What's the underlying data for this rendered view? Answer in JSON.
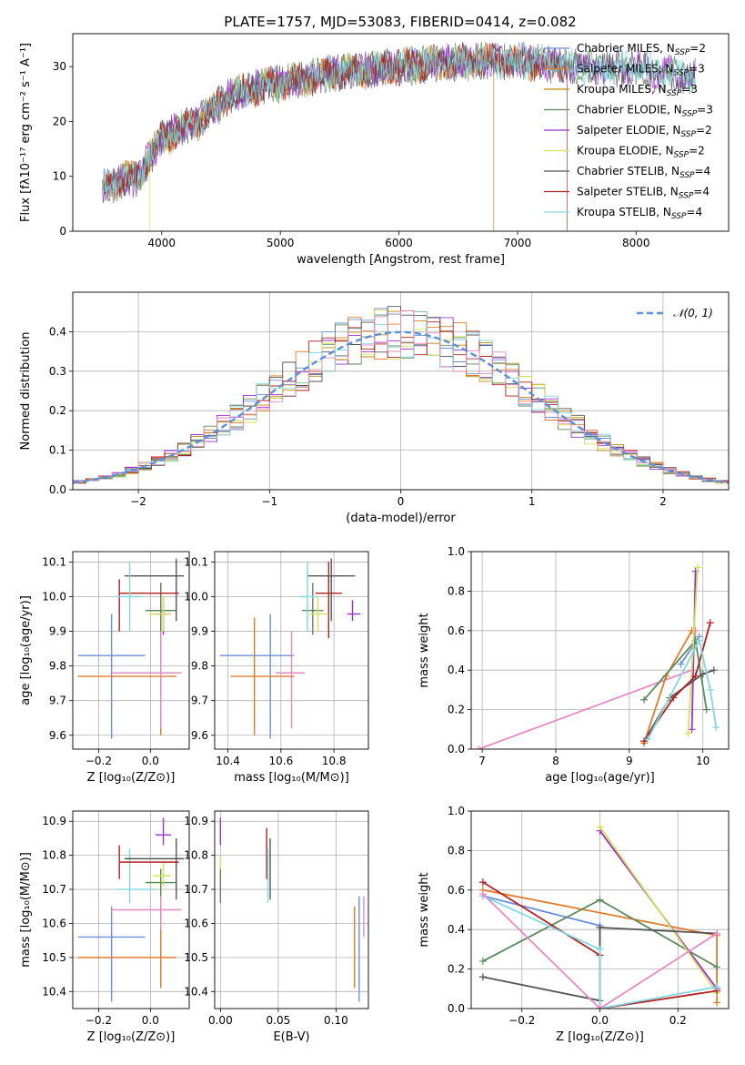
{
  "figure": {
    "title": "PLATE=1757, MJD=53083, FIBERID=0414, z=0.082"
  },
  "legend_models": [
    {
      "label": "Chabrier MILES, N",
      "sub": "SSP",
      "suffix": "=2",
      "color": "#6b8fd6"
    },
    {
      "label": "Salpeter MILES, N",
      "sub": "SSP",
      "suffix": "=3",
      "color": "#e07b2a"
    },
    {
      "label": "Kroupa MILES, N",
      "sub": "SSP",
      "suffix": "=3",
      "color": "#b8860b"
    },
    {
      "label": "Chabrier ELODIE, N",
      "sub": "SSP",
      "suffix": "=3",
      "color": "#5a8a5a"
    },
    {
      "label": "Salpeter ELODIE, N",
      "sub": "SSP",
      "suffix": "=2",
      "color": "#9932cc"
    },
    {
      "label": "Kroupa ELODIE, N",
      "sub": "SSP",
      "suffix": "=2",
      "color": "#d4e157"
    },
    {
      "label": "Chabrier STELIB, N",
      "sub": "SSP",
      "suffix": "=4",
      "color": "#555555"
    },
    {
      "label": "Salpeter STELIB, N",
      "sub": "SSP",
      "suffix": "=4",
      "color": "#b22222"
    },
    {
      "label": "Kroupa STELIB, N",
      "sub": "SSP",
      "suffix": "=4",
      "color": "#80d8e0"
    }
  ],
  "chart_data": [
    {
      "id": "spectrum",
      "type": "line",
      "xlabel": "wavelength [Angstrom, rest frame]",
      "ylabel": "Flux [fλ10⁻¹⁷ erg cm⁻² s⁻¹ A⁻¹]",
      "xlim": [
        3250,
        8780
      ],
      "ylim": [
        0,
        36
      ],
      "xticks": [
        4000,
        5000,
        6000,
        7000,
        8000
      ],
      "yticks": [
        0,
        10,
        20,
        30
      ],
      "continuum": [
        [
          3500,
          8
        ],
        [
          3800,
          10
        ],
        [
          4000,
          17
        ],
        [
          4300,
          20
        ],
        [
          4600,
          25
        ],
        [
          5000,
          27
        ],
        [
          5500,
          29
        ],
        [
          6000,
          30
        ],
        [
          6500,
          31
        ],
        [
          7000,
          31
        ],
        [
          7500,
          30
        ],
        [
          8000,
          29.5
        ],
        [
          8500,
          28
        ]
      ]
    },
    {
      "id": "residuals",
      "type": "line",
      "xlabel": "(data-model)/error",
      "ylabel": "Normed distribution",
      "xlim": [
        -2.5,
        2.5
      ],
      "ylim": [
        0,
        0.5
      ],
      "xticks": [
        -2,
        -1,
        0,
        1,
        2
      ],
      "yticks": [
        0.0,
        0.1,
        0.2,
        0.3,
        0.4
      ],
      "grid": true,
      "legend": "𝒩(0, 1)",
      "legend_position": "top-right",
      "gaussian": {
        "mean": 0,
        "sigma": 1
      }
    },
    {
      "id": "age-vs-Z",
      "type": "scatter",
      "xlabel": "Z [log₁₀(Z/Z⊙)]",
      "ylabel": "age  [log₁₀(age/yr)]",
      "xlim": [
        -0.3,
        0.15
      ],
      "ylim": [
        9.56,
        10.13
      ],
      "xticks": [
        -0.2,
        0.0
      ],
      "yticks": [
        9.6,
        9.7,
        9.8,
        9.9,
        10.0,
        10.1
      ],
      "grid": true,
      "points": [
        {
          "c": "#6b8fd6",
          "x": -0.15,
          "y": 9.83,
          "xe": [
            -0.28,
            -0.02
          ],
          "ye": [
            9.59,
            9.95
          ]
        },
        {
          "c": "#e07b2a",
          "x": 0.04,
          "y": 9.77,
          "xe": [
            -0.28,
            0.1
          ],
          "ye": [
            9.6,
            9.94
          ]
        },
        {
          "c": "#b8860b",
          "x": 0.04,
          "y": 9.96,
          "xe": [
            0.0,
            0.08
          ],
          "ye": [
            9.88,
            10.04
          ]
        },
        {
          "c": "#5a8a5a",
          "x": 0.04,
          "y": 9.96,
          "xe": [
            -0.02,
            0.1
          ],
          "ye": [
            9.89,
            10.04
          ]
        },
        {
          "c": "#9932cc",
          "x": 0.05,
          "y": 9.95,
          "xe": [
            0.02,
            0.08
          ],
          "ye": [
            9.89,
            10.0
          ]
        },
        {
          "c": "#d4e157",
          "x": 0.05,
          "y": 9.95,
          "xe": [
            0.0,
            0.08
          ],
          "ye": [
            9.9,
            10.0
          ]
        },
        {
          "c": "#555555",
          "x": 0.1,
          "y": 10.06,
          "xe": [
            -0.1,
            0.13
          ],
          "ye": [
            9.93,
            10.11
          ]
        },
        {
          "c": "#b22222",
          "x": -0.12,
          "y": 10.01,
          "xe": [
            -0.12,
            0.11
          ],
          "ye": [
            9.9,
            10.05
          ]
        },
        {
          "c": "#80d8e0",
          "x": -0.08,
          "y": 10.0,
          "xe": [
            -0.13,
            -0.03
          ],
          "ye": [
            9.9,
            10.1
          ]
        },
        {
          "c": "#e78ac3",
          "x": 0.04,
          "y": 9.78,
          "xe": [
            -0.15,
            0.12
          ],
          "ye": [
            9.62,
            9.9
          ]
        }
      ]
    },
    {
      "id": "age-vs-mass",
      "type": "scatter",
      "xlabel": "mass [log₁₀(M/M⊙)]",
      "ylabel": "",
      "xlim": [
        10.35,
        10.93
      ],
      "ylim": [
        9.56,
        10.13
      ],
      "xticks": [
        10.4,
        10.6,
        10.8
      ],
      "yticks": [
        9.6,
        9.7,
        9.8,
        9.9,
        10.0,
        10.1
      ],
      "grid": true,
      "points": [
        {
          "c": "#6b8fd6",
          "x": 10.56,
          "y": 9.83,
          "xe": [
            10.37,
            10.65
          ],
          "ye": [
            9.59,
            9.95
          ]
        },
        {
          "c": "#e78ac3",
          "x": 10.64,
          "y": 9.78,
          "xe": [
            10.58,
            10.69
          ],
          "ye": [
            9.62,
            9.9
          ]
        },
        {
          "c": "#e07b2a",
          "x": 10.5,
          "y": 9.77,
          "xe": [
            10.41,
            10.65
          ],
          "ye": [
            9.6,
            9.94
          ]
        },
        {
          "c": "#9932cc",
          "x": 10.87,
          "y": 9.95,
          "xe": [
            10.85,
            10.9
          ],
          "ye": [
            9.93,
            9.99
          ]
        },
        {
          "c": "#b22222",
          "x": 10.78,
          "y": 10.01,
          "xe": [
            10.73,
            10.83
          ],
          "ye": [
            9.88,
            10.1
          ]
        },
        {
          "c": "#555555",
          "x": 10.79,
          "y": 10.06,
          "xe": [
            10.7,
            10.88
          ],
          "ye": [
            9.93,
            10.11
          ]
        },
        {
          "c": "#5a8a5a",
          "x": 10.72,
          "y": 9.96,
          "xe": [
            10.68,
            10.76
          ],
          "ye": [
            9.89,
            10.04
          ]
        },
        {
          "c": "#d4e157",
          "x": 10.74,
          "y": 9.95,
          "xe": [
            10.71,
            10.78
          ],
          "ye": [
            9.9,
            10.0
          ]
        },
        {
          "c": "#80d8e0",
          "x": 10.7,
          "y": 10.0,
          "xe": [
            10.67,
            10.74
          ],
          "ye": [
            9.9,
            10.1
          ]
        }
      ]
    },
    {
      "id": "weight-vs-age",
      "type": "line",
      "xlabel": "age  [log₁₀(age/yr)]",
      "ylabel": "mass weight",
      "xlim": [
        6.85,
        10.35
      ],
      "ylim": [
        0,
        1
      ],
      "xticks": [
        7,
        8,
        9,
        10
      ],
      "yticks": [
        0.0,
        0.2,
        0.4,
        0.6,
        0.8,
        1.0
      ],
      "grid": true,
      "series": [
        {
          "c": "#e78ac3",
          "x": [
            6.95,
            9.85,
            9.9
          ],
          "y": [
            0.0,
            0.4,
            0.6
          ]
        },
        {
          "c": "#e07b2a",
          "x": [
            9.2,
            9.5,
            9.85
          ],
          "y": [
            0.03,
            0.37,
            0.6
          ]
        },
        {
          "c": "#6b8fd6",
          "x": [
            9.7,
            9.95
          ],
          "y": [
            0.43,
            0.57
          ]
        },
        {
          "c": "#5a8a5a",
          "x": [
            9.2,
            9.9,
            10.05
          ],
          "y": [
            0.25,
            0.55,
            0.2
          ]
        },
        {
          "c": "#9932cc",
          "x": [
            9.85,
            9.9
          ],
          "y": [
            0.1,
            0.9
          ]
        },
        {
          "c": "#d4e157",
          "x": [
            9.8,
            9.93
          ],
          "y": [
            0.08,
            0.92
          ]
        },
        {
          "c": "#555555",
          "x": [
            9.2,
            9.55,
            10.0,
            10.15
          ],
          "y": [
            0.04,
            0.26,
            0.38,
            0.4
          ]
        },
        {
          "c": "#b22222",
          "x": [
            9.2,
            9.6,
            9.9,
            10.1
          ],
          "y": [
            0.04,
            0.26,
            0.37,
            0.64
          ]
        },
        {
          "c": "#80d8e0",
          "x": [
            9.25,
            9.95,
            10.1,
            10.18
          ],
          "y": [
            0.05,
            0.55,
            0.3,
            0.11
          ]
        }
      ]
    },
    {
      "id": "mass-vs-Z",
      "type": "scatter",
      "xlabel": "Z [log₁₀(Z/Z⊙)]",
      "ylabel": "mass [log₁₀(M/M⊙)]",
      "xlim": [
        -0.3,
        0.15
      ],
      "ylim": [
        10.35,
        10.93
      ],
      "xticks": [
        -0.2,
        0.0
      ],
      "yticks": [
        10.4,
        10.5,
        10.6,
        10.7,
        10.8,
        10.9
      ],
      "grid": true,
      "points": [
        {
          "c": "#6b8fd6",
          "x": -0.15,
          "y": 10.56,
          "xe": [
            -0.28,
            -0.02
          ],
          "ye": [
            10.37,
            10.65
          ]
        },
        {
          "c": "#e07b2a",
          "x": 0.04,
          "y": 10.5,
          "xe": [
            -0.28,
            0.1
          ],
          "ye": [
            10.41,
            10.65
          ]
        },
        {
          "c": "#e78ac3",
          "x": 0.04,
          "y": 10.64,
          "xe": [
            -0.15,
            0.12
          ],
          "ye": [
            10.58,
            10.69
          ]
        },
        {
          "c": "#80d8e0",
          "x": -0.08,
          "y": 10.7,
          "xe": [
            -0.13,
            0.02
          ],
          "ye": [
            10.66,
            10.82
          ]
        },
        {
          "c": "#5a8a5a",
          "x": 0.04,
          "y": 10.72,
          "xe": [
            -0.02,
            0.1
          ],
          "ye": [
            10.68,
            10.76
          ]
        },
        {
          "c": "#d4e157",
          "x": 0.05,
          "y": 10.74,
          "xe": [
            0.01,
            0.08
          ],
          "ye": [
            10.71,
            10.78
          ]
        },
        {
          "c": "#555555",
          "x": 0.1,
          "y": 10.79,
          "xe": [
            -0.1,
            0.13
          ],
          "ye": [
            10.67,
            10.85
          ]
        },
        {
          "c": "#b22222",
          "x": -0.12,
          "y": 10.78,
          "xe": [
            -0.12,
            0.11
          ],
          "ye": [
            10.73,
            10.83
          ]
        },
        {
          "c": "#9932cc",
          "x": 0.05,
          "y": 10.86,
          "xe": [
            0.02,
            0.08
          ],
          "ye": [
            10.83,
            10.91
          ]
        }
      ]
    },
    {
      "id": "mass-vs-ebv",
      "type": "scatter",
      "xlabel": "E(B-V)",
      "ylabel": "",
      "xlim": [
        -0.005,
        0.128
      ],
      "ylim": [
        10.35,
        10.93
      ],
      "xticks": [
        0.0,
        0.05,
        0.1
      ],
      "yticks": [
        10.4,
        10.5,
        10.6,
        10.7,
        10.8,
        10.9
      ],
      "grid": true,
      "points": [
        {
          "c": "#9932cc",
          "x": 0.0,
          "y": 10.86,
          "xe": [
            0.0,
            0.0
          ],
          "ye": [
            10.83,
            10.91
          ]
        },
        {
          "c": "#d4e157",
          "x": 0.0,
          "y": 10.74,
          "xe": [
            0.0,
            0.0
          ],
          "ye": [
            10.71,
            10.8
          ]
        },
        {
          "c": "#5a8a5a",
          "x": 0.0,
          "y": 10.72,
          "xe": [
            0.0,
            0.0
          ],
          "ye": [
            10.66,
            10.76
          ]
        },
        {
          "c": "#b22222",
          "x": 0.04,
          "y": 10.78,
          "xe": [
            0.04,
            0.04
          ],
          "ye": [
            10.73,
            10.88
          ]
        },
        {
          "c": "#555555",
          "x": 0.043,
          "y": 10.79,
          "xe": [
            0.043,
            0.043
          ],
          "ye": [
            10.67,
            10.85
          ]
        },
        {
          "c": "#80d8e0",
          "x": 0.041,
          "y": 10.7,
          "xe": [
            0.041,
            0.041
          ],
          "ye": [
            10.66,
            10.82
          ]
        },
        {
          "c": "#e07b2a",
          "x": 0.116,
          "y": 10.5,
          "xe": [
            0.116,
            0.116
          ],
          "ye": [
            10.41,
            10.65
          ]
        },
        {
          "c": "#6b8fd6",
          "x": 0.12,
          "y": 10.56,
          "xe": [
            0.12,
            0.12
          ],
          "ye": [
            10.37,
            10.68
          ]
        },
        {
          "c": "#e78ac3",
          "x": 0.124,
          "y": 10.64,
          "xe": [
            0.124,
            0.124
          ],
          "ye": [
            10.56,
            10.68
          ]
        }
      ]
    },
    {
      "id": "weight-vs-Z",
      "type": "line",
      "xlabel": "Z [log₁₀(Z/Z⊙)]",
      "ylabel": "mass weight",
      "xlim": [
        -0.33,
        0.33
      ],
      "ylim": [
        0,
        1
      ],
      "xticks": [
        -0.2,
        0.0,
        0.2
      ],
      "yticks": [
        0.0,
        0.2,
        0.4,
        0.6,
        0.8,
        1.0
      ],
      "grid": true,
      "series": [
        {
          "c": "#6b8fd6",
          "x": [
            -0.3,
            0.0,
            0.0
          ],
          "y": [
            0.57,
            0.42,
            0.0
          ]
        },
        {
          "c": "#e07b2a",
          "x": [
            -0.3,
            0.3,
            0.3
          ],
          "y": [
            0.6,
            0.37,
            0.03
          ]
        },
        {
          "c": "#5a8a5a",
          "x": [
            -0.3,
            0.0,
            0.3
          ],
          "y": [
            0.24,
            0.55,
            0.21
          ]
        },
        {
          "c": "#9932cc",
          "x": [
            0.0,
            0.3
          ],
          "y": [
            0.9,
            0.1
          ]
        },
        {
          "c": "#d4e157",
          "x": [
            0.0,
            0.3
          ],
          "y": [
            0.92,
            0.08
          ]
        },
        {
          "c": "#555555",
          "x": [
            -0.3,
            0.0,
            0.0,
            0.3
          ],
          "y": [
            0.16,
            0.04,
            0.41,
            0.38
          ]
        },
        {
          "c": "#b22222",
          "x": [
            -0.3,
            0.0,
            0.0,
            0.3
          ],
          "y": [
            0.64,
            0.27,
            0.0,
            0.09
          ]
        },
        {
          "c": "#80d8e0",
          "x": [
            -0.3,
            0.0,
            0.0,
            0.3
          ],
          "y": [
            0.57,
            0.3,
            0.0,
            0.11
          ]
        },
        {
          "c": "#e78ac3",
          "x": [
            -0.3,
            0.0,
            0.3
          ],
          "y": [
            0.58,
            0.0,
            0.38
          ]
        }
      ]
    }
  ]
}
